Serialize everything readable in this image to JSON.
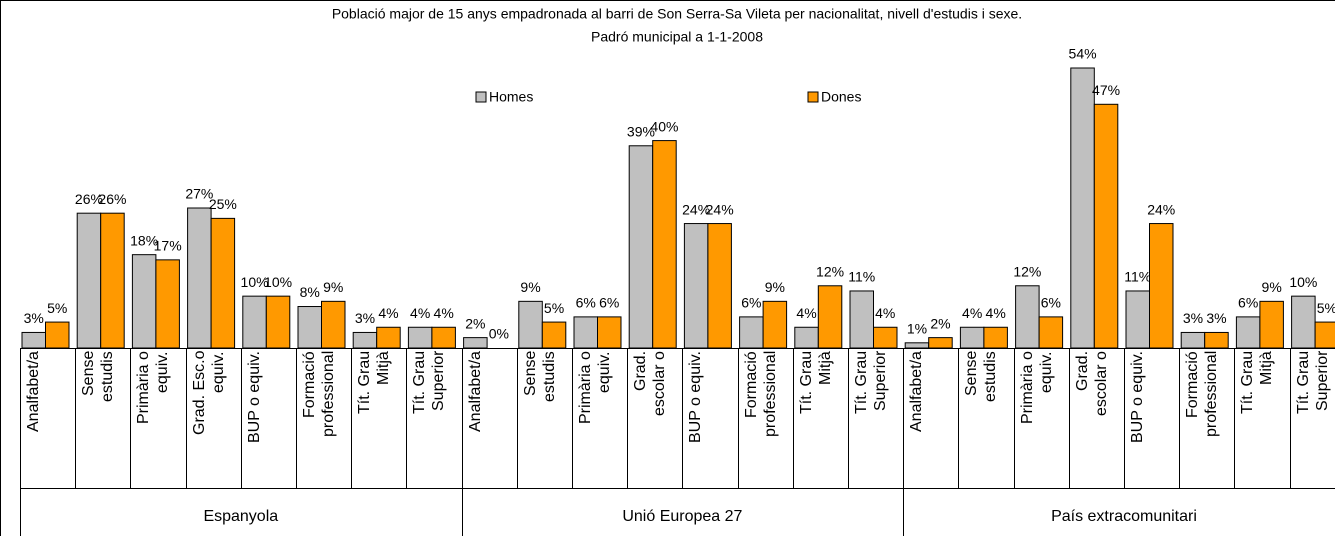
{
  "chart_data": {
    "type": "bar",
    "title": "Població major de 15 anys empadronada al barri de Son Serra-Sa Vileta per nacionalitat, nivell d'estudis i sexe.",
    "subtitle": "Padró municipal a 1-1-2008",
    "groups": [
      "Espanyola",
      "Unió Europea 27",
      "País extracomunitari"
    ],
    "categories": [
      "Analfabet/a",
      "Sense\nestudis",
      "Primària o\nequiv.",
      "Grad. Esc.o\nequiv.",
      "BUP o equiv.",
      "Formació\nprofessional",
      "Tít. Grau\nMitjà",
      "Tít. Grau\nSuperior",
      "Analfabet/a",
      "Sense\nestudis",
      "Primària o\nequiv.",
      "Grad.\nescolar o",
      "BUP o equiv.",
      "Formació\nprofessional",
      "Tít. Grau\nMitjà",
      "Tít. Grau\nSuperior",
      "Analfabet/a",
      "Sense\nestudis",
      "Primària o\nequiv.",
      "Grad.\nescolar o",
      "BUP o equiv.",
      "Formació\nprofessional",
      "Tít. Grau\nMitjà",
      "Tít. Grau\nSuperior"
    ],
    "series": [
      {
        "name": "Homes",
        "color": "#c0c0c0",
        "values": [
          3,
          26,
          18,
          27,
          10,
          8,
          3,
          4,
          2,
          9,
          6,
          39,
          24,
          6,
          4,
          11,
          1,
          4,
          12,
          54,
          11,
          3,
          6,
          10
        ],
        "value_labels": [
          "3%",
          "26%",
          "18%",
          "27%",
          "10%",
          "8%",
          "3%",
          "4%",
          "2%",
          "9%",
          "6%",
          "39%",
          "24%",
          "6%",
          "4%",
          "11%",
          "1%",
          "4%",
          "12%",
          "54%",
          "11%",
          "3%",
          "6%",
          "10%"
        ]
      },
      {
        "name": "Dones",
        "color": "#ff9900",
        "values": [
          5,
          26,
          17,
          25,
          10,
          9,
          4,
          4,
          0,
          5,
          6,
          40,
          24,
          9,
          12,
          4,
          2,
          4,
          6,
          47,
          24,
          3,
          9,
          5
        ],
        "value_labels": [
          "5%",
          "26%",
          "17%",
          "25%",
          "10%",
          "9%",
          "4%",
          "4%",
          "0%",
          "5%",
          "6%",
          "40%",
          "24%",
          "9%",
          "12%",
          "4%",
          "2%",
          "4%",
          "6%",
          "47%",
          "24%",
          "3%",
          "9%",
          "5%"
        ]
      }
    ]
  }
}
